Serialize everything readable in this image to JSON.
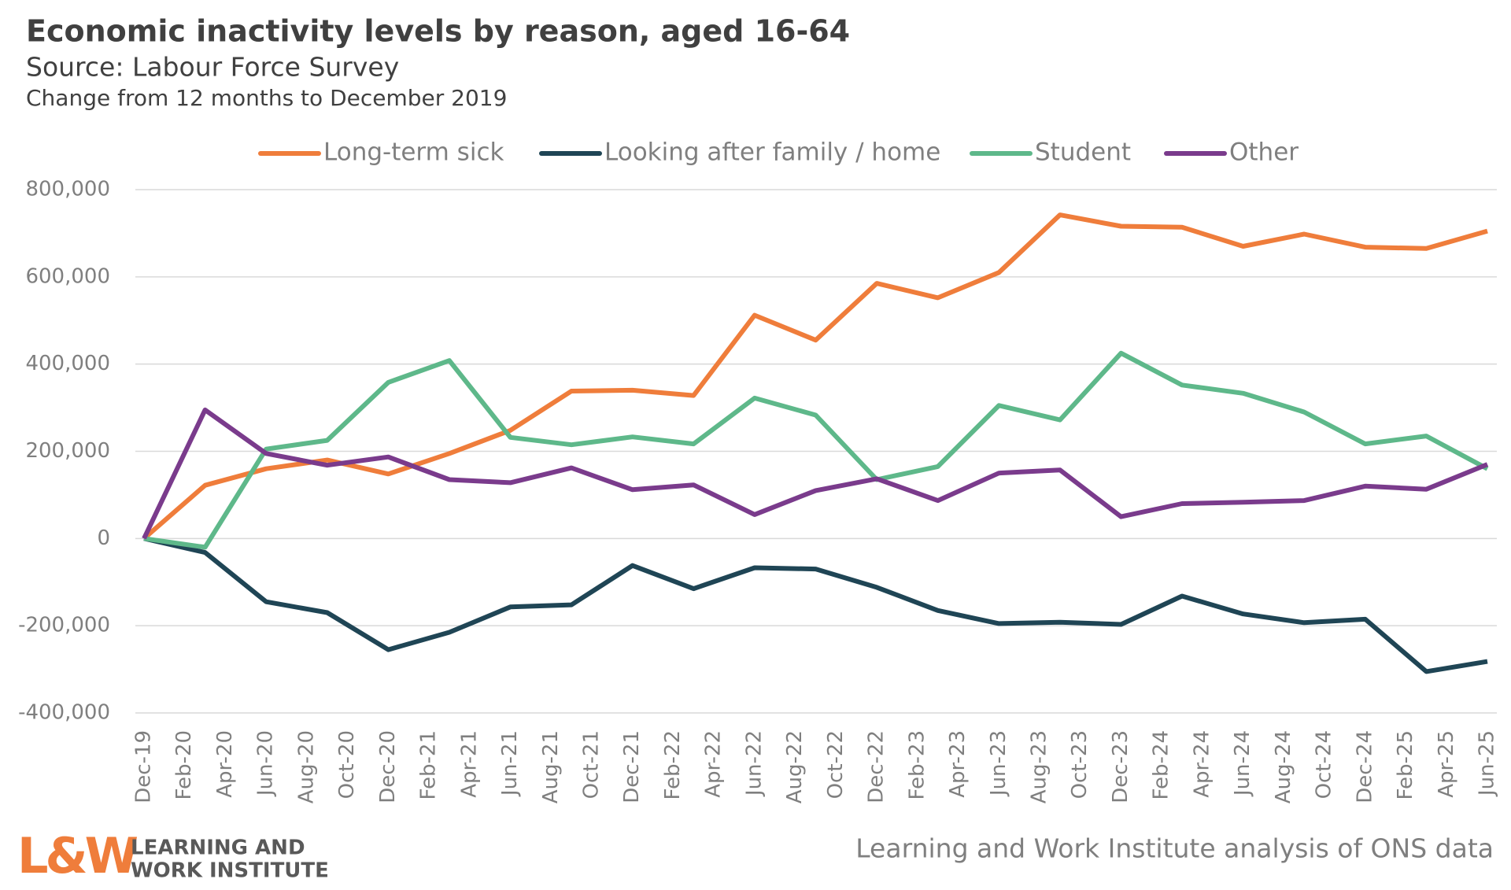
{
  "chart_data": {
    "type": "line",
    "title": "Economic inactivity levels by reason, aged 16-64",
    "subtitle": "Source: Labour Force Survey",
    "note": "Change from 12 months to December 2019",
    "credit": "Learning and Work Institute analysis of ONS data",
    "logo": {
      "mark": "L&W",
      "lines": [
        "LEARNING AND",
        "WORK INSTITUTE"
      ]
    },
    "xticks": [
      "Dec-19",
      "Feb-20",
      "Apr-20",
      "Jun-20",
      "Aug-20",
      "Oct-20",
      "Dec-20",
      "Feb-21",
      "Apr-21",
      "Jun-21",
      "Aug-21",
      "Oct-21",
      "Dec-21",
      "Feb-22",
      "Apr-22",
      "Jun-22",
      "Aug-22",
      "Oct-22",
      "Dec-22",
      "Feb-23",
      "Apr-23",
      "Jun-23",
      "Aug-23",
      "Oct-23",
      "Dec-23",
      "Feb-24",
      "Apr-24",
      "Jun-24",
      "Aug-24",
      "Oct-24",
      "Dec-24",
      "Feb-25",
      "Apr-25",
      "Jun-25"
    ],
    "x": [
      "Dec-19",
      "Mar-20",
      "Jun-20",
      "Sep-20",
      "Dec-20",
      "Mar-21",
      "Jun-21",
      "Sep-21",
      "Dec-21",
      "Mar-22",
      "Jun-22",
      "Sep-22",
      "Dec-22",
      "Mar-23",
      "Jun-23",
      "Sep-23",
      "Dec-23",
      "Mar-24",
      "Jun-24",
      "Sep-24",
      "Dec-24",
      "Mar-25",
      "Jun-25"
    ],
    "ylim": [
      -400000,
      800000
    ],
    "yticks": [
      {
        "value": -400000,
        "label": "-400,000"
      },
      {
        "value": -200000,
        "label": "-200,000"
      },
      0,
      {
        "value": 200000,
        "label": "200,000"
      },
      {
        "value": 400000,
        "label": "400,000"
      },
      {
        "value": 600000,
        "label": "600,000"
      },
      {
        "value": 800000,
        "label": "800,000"
      }
    ],
    "grid": true,
    "legend": "top",
    "series": [
      {
        "name": "Long-term sick",
        "color": "#ef7d3b",
        "values": [
          0,
          122000,
          160000,
          180000,
          148000,
          195000,
          248000,
          338000,
          340000,
          328000,
          512000,
          455000,
          585000,
          552000,
          610000,
          742000,
          716000,
          714000,
          670000,
          698000,
          668000,
          665000,
          705000
        ]
      },
      {
        "name": "Looking after family / home",
        "color": "#1f4555",
        "values": [
          0,
          -32000,
          -145000,
          -170000,
          -255000,
          -215000,
          -157000,
          -152000,
          -62000,
          -115000,
          -67000,
          -70000,
          -112000,
          -165000,
          -195000,
          -192000,
          -197000,
          -132000,
          -173000,
          -193000,
          -185000,
          -305000,
          -282000
        ]
      },
      {
        "name": "Student",
        "color": "#5eb88a",
        "values": [
          0,
          -20000,
          205000,
          225000,
          358000,
          408000,
          232000,
          215000,
          233000,
          217000,
          322000,
          283000,
          135000,
          165000,
          305000,
          272000,
          425000,
          352000,
          333000,
          290000,
          217000,
          235000,
          160000
        ]
      },
      {
        "name": "Other",
        "color": "#7a3b8c",
        "values": [
          0,
          295000,
          195000,
          168000,
          187000,
          135000,
          128000,
          162000,
          112000,
          123000,
          55000,
          110000,
          137000,
          87000,
          150000,
          157000,
          50000,
          80000,
          83000,
          87000,
          120000,
          113000,
          170000
        ]
      }
    ]
  }
}
